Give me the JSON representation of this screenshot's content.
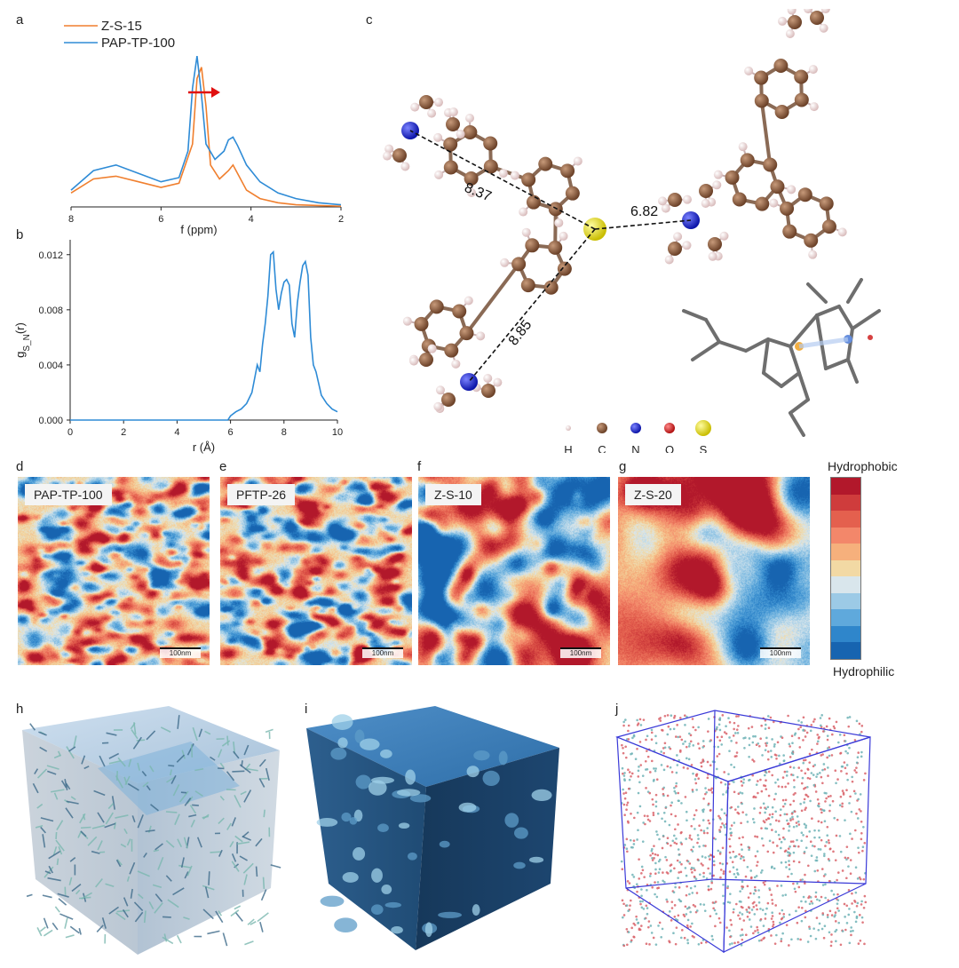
{
  "panels": {
    "a": "a",
    "b": "b",
    "c": "c",
    "d": "d",
    "e": "e",
    "f": "f",
    "g": "g",
    "h": "h",
    "i": "i",
    "j": "j"
  },
  "chart_data": [
    {
      "type": "line",
      "panel": "a",
      "xlabel": "f (ppm)",
      "xlim": [
        8,
        2
      ],
      "xticks": [
        "8",
        "6",
        "4",
        "2"
      ],
      "series": [
        {
          "name": "Z-S-15",
          "color": "#f07f2e",
          "x": [
            8.0,
            7.5,
            7.0,
            6.5,
            6.0,
            5.6,
            5.3,
            5.2,
            5.1,
            5.0,
            4.9,
            4.7,
            4.5,
            4.4,
            4.3,
            4.1,
            3.8,
            3.4,
            3.0,
            2.5,
            2.0
          ],
          "y": [
            0.1,
            0.2,
            0.22,
            0.18,
            0.14,
            0.17,
            0.45,
            0.92,
            1.0,
            0.72,
            0.3,
            0.2,
            0.26,
            0.3,
            0.24,
            0.12,
            0.06,
            0.03,
            0.015,
            0.01,
            0.005
          ]
        },
        {
          "name": "PAP-TP-100",
          "color": "#2e8bd6",
          "x": [
            8.0,
            7.5,
            7.0,
            6.5,
            6.0,
            5.6,
            5.4,
            5.3,
            5.2,
            5.1,
            5.0,
            4.8,
            4.6,
            4.5,
            4.4,
            4.3,
            4.1,
            3.8,
            3.4,
            3.0,
            2.5,
            2.0
          ],
          "y": [
            0.12,
            0.26,
            0.3,
            0.24,
            0.18,
            0.21,
            0.4,
            0.85,
            1.08,
            0.8,
            0.45,
            0.34,
            0.4,
            0.48,
            0.5,
            0.44,
            0.3,
            0.18,
            0.1,
            0.06,
            0.03,
            0.015
          ]
        }
      ],
      "annotation": "shift-arrow"
    },
    {
      "type": "line",
      "panel": "b",
      "xlabel": "r (Å)",
      "ylabel": "g",
      "ylabel_sub": "S_N",
      "ylabel_suffix": "(r)",
      "xlim": [
        0,
        10
      ],
      "ylim": [
        0,
        0.0125
      ],
      "xticks": [
        "0",
        "2",
        "4",
        "6",
        "8",
        "10"
      ],
      "yticks": [
        "0.000",
        "0.004",
        "0.008",
        "0.012"
      ],
      "series": [
        {
          "color": "#2e8bd6",
          "x": [
            0,
            5.9,
            6.0,
            6.2,
            6.4,
            6.6,
            6.8,
            7.0,
            7.1,
            7.2,
            7.3,
            7.4,
            7.5,
            7.6,
            7.7,
            7.8,
            7.9,
            8.0,
            8.1,
            8.2,
            8.3,
            8.4,
            8.5,
            8.6,
            8.7,
            8.8,
            8.9,
            9.0,
            9.1,
            9.2,
            9.4,
            9.6,
            9.8,
            10.0
          ],
          "y": [
            0,
            0,
            0.0003,
            0.0006,
            0.0008,
            0.0012,
            0.002,
            0.004,
            0.0035,
            0.0055,
            0.007,
            0.009,
            0.012,
            0.0122,
            0.0095,
            0.008,
            0.0092,
            0.01,
            0.0102,
            0.0098,
            0.007,
            0.006,
            0.0085,
            0.01,
            0.0112,
            0.0115,
            0.0105,
            0.006,
            0.004,
            0.0035,
            0.0018,
            0.0012,
            0.0008,
            0.0006
          ]
        }
      ]
    }
  ],
  "molecule": {
    "distances": [
      "8.37",
      "6.82",
      "8.85"
    ],
    "legend": [
      {
        "label": "H",
        "color": "#f0dede"
      },
      {
        "label": "C",
        "color": "#8b5a3c"
      },
      {
        "label": "N",
        "color": "#1f2ad6"
      },
      {
        "label": "O",
        "color": "#d42020"
      },
      {
        "label": "S",
        "color": "#f2ea20"
      }
    ]
  },
  "afm": [
    {
      "tag": "PAP-TP-100",
      "scale": "100nm"
    },
    {
      "tag": "PFTP-26",
      "scale": "100nm"
    },
    {
      "tag": "Z-S-10",
      "scale": "100nm"
    },
    {
      "tag": "Z-S-20",
      "scale": "100nm"
    }
  ],
  "colorbar": {
    "top": "Hydrophobic",
    "bottom": "Hydrophilic",
    "colors": [
      "#b2182b",
      "#cf3c3c",
      "#e4604e",
      "#f3876a",
      "#f6b07c",
      "#f2d9a4",
      "#d9e6ec",
      "#9ccae6",
      "#5fa9dc",
      "#2f86cb",
      "#1764b0"
    ]
  }
}
